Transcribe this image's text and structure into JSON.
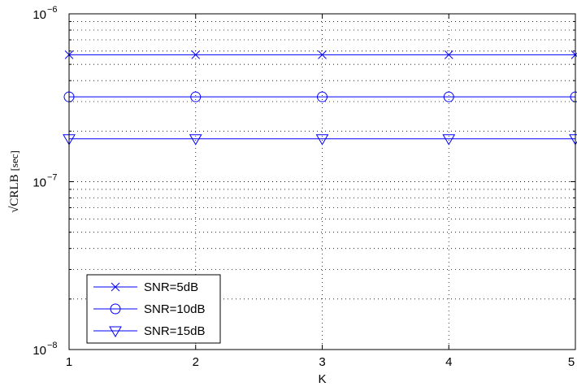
{
  "chart_data": {
    "type": "line",
    "x": [
      1,
      2,
      3,
      4,
      5
    ],
    "xticks": [
      "1",
      "2",
      "3",
      "4",
      "5"
    ],
    "xlim": [
      1,
      5
    ],
    "ylim": [
      1e-08,
      1e-06
    ],
    "yscale": "log",
    "yticks": [
      {
        "value": 1e-08,
        "base": "10",
        "exp": "−8"
      },
      {
        "value": 1e-07,
        "base": "10",
        "exp": "−7"
      },
      {
        "value": 1e-06,
        "base": "10",
        "exp": "−6"
      }
    ],
    "xlabel": "K",
    "ylabel": {
      "radical": "√",
      "main": "CRLB",
      "unit": "[sec]"
    },
    "grid": true,
    "legend_position": "bottom-left",
    "line_color": "#0000ff",
    "series": [
      {
        "name": "SNR=5dB",
        "marker": "x",
        "values": [
          5.7e-07,
          5.7e-07,
          5.7e-07,
          5.7e-07,
          5.7e-07
        ]
      },
      {
        "name": "SNR=10dB",
        "marker": "circle",
        "values": [
          3.2e-07,
          3.2e-07,
          3.2e-07,
          3.2e-07,
          3.2e-07
        ]
      },
      {
        "name": "SNR=15dB",
        "marker": "triangle-down",
        "values": [
          1.8e-07,
          1.8e-07,
          1.8e-07,
          1.8e-07,
          1.8e-07
        ]
      }
    ]
  }
}
